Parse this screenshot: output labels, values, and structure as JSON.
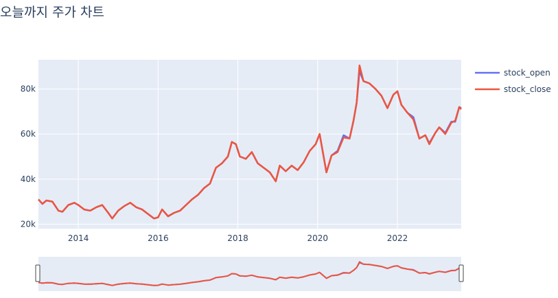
{
  "chart_data": {
    "type": "line",
    "title": "오늘까지 주가 차트",
    "xlabel": "",
    "ylabel": "",
    "x_range": [
      2013.0,
      2023.6
    ],
    "ylim": [
      18000,
      93000
    ],
    "x_ticks": [
      2014,
      2016,
      2018,
      2020,
      2022
    ],
    "x_tick_labels": [
      "2014",
      "2016",
      "2018",
      "2020",
      "2022"
    ],
    "y_ticks": [
      20000,
      40000,
      60000,
      80000
    ],
    "y_tick_labels": [
      "20k",
      "40k",
      "60k",
      "80k"
    ],
    "grid": true,
    "legend_position": "top-right",
    "range_slider": true,
    "x": [
      2013.0,
      2013.1,
      2013.2,
      2013.35,
      2013.5,
      2013.6,
      2013.75,
      2013.9,
      2014.0,
      2014.15,
      2014.3,
      2014.45,
      2014.6,
      2014.75,
      2014.85,
      2015.0,
      2015.15,
      2015.3,
      2015.45,
      2015.6,
      2015.75,
      2015.9,
      2016.0,
      2016.1,
      2016.25,
      2016.4,
      2016.55,
      2016.7,
      2016.85,
      2017.0,
      2017.15,
      2017.3,
      2017.45,
      2017.6,
      2017.75,
      2017.85,
      2017.95,
      2018.05,
      2018.2,
      2018.35,
      2018.5,
      2018.65,
      2018.8,
      2018.95,
      2019.05,
      2019.2,
      2019.35,
      2019.5,
      2019.65,
      2019.8,
      2019.95,
      2020.05,
      2020.15,
      2020.22,
      2020.35,
      2020.5,
      2020.65,
      2020.8,
      2020.9,
      2020.98,
      2021.05,
      2021.15,
      2021.3,
      2021.45,
      2021.6,
      2021.75,
      2021.9,
      2022.0,
      2022.1,
      2022.25,
      2022.4,
      2022.55,
      2022.7,
      2022.8,
      2022.95,
      2023.05,
      2023.2,
      2023.35,
      2023.45,
      2023.55,
      2023.6
    ],
    "series": [
      {
        "name": "stock_open",
        "color": "#636efa",
        "values": [
          31000,
          29000,
          30500,
          30000,
          26000,
          25500,
          28500,
          29500,
          28500,
          26500,
          26000,
          27500,
          28500,
          25000,
          22500,
          26000,
          28000,
          29500,
          27500,
          26500,
          24500,
          22500,
          23000,
          26500,
          23500,
          25000,
          26000,
          28500,
          31000,
          33000,
          36000,
          38000,
          45000,
          47000,
          50000,
          56500,
          55500,
          50000,
          49000,
          52000,
          47000,
          45000,
          43000,
          39000,
          46000,
          43500,
          46000,
          44000,
          47500,
          52500,
          55500,
          60000,
          50000,
          43000,
          50500,
          52500,
          59500,
          58000,
          66000,
          74000,
          88000,
          83500,
          82500,
          80000,
          77000,
          71500,
          77500,
          79000,
          73000,
          69500,
          67500,
          58000,
          59500,
          56000,
          60500,
          63000,
          60500,
          65500,
          65500,
          72000,
          71500
        ]
      },
      {
        "name": "stock_close",
        "color": "#ef553b",
        "values": [
          31000,
          29000,
          30500,
          30000,
          26000,
          25500,
          28500,
          29500,
          28500,
          26500,
          26000,
          27500,
          28500,
          25000,
          22500,
          26000,
          28000,
          29500,
          27500,
          26500,
          24500,
          22500,
          23000,
          26500,
          23500,
          25000,
          26000,
          28500,
          31000,
          33000,
          36000,
          38000,
          45000,
          47000,
          50000,
          56500,
          55500,
          50000,
          49000,
          52000,
          47000,
          45000,
          43000,
          39000,
          46000,
          43500,
          46000,
          44000,
          47500,
          52500,
          55500,
          60000,
          50000,
          43000,
          50500,
          52000,
          58500,
          58000,
          66000,
          74000,
          90500,
          83500,
          82500,
          80000,
          77000,
          71500,
          77500,
          79000,
          73000,
          69500,
          66500,
          58000,
          59500,
          55500,
          60500,
          63000,
          60000,
          65000,
          66000,
          72000,
          71000
        ]
      }
    ]
  }
}
